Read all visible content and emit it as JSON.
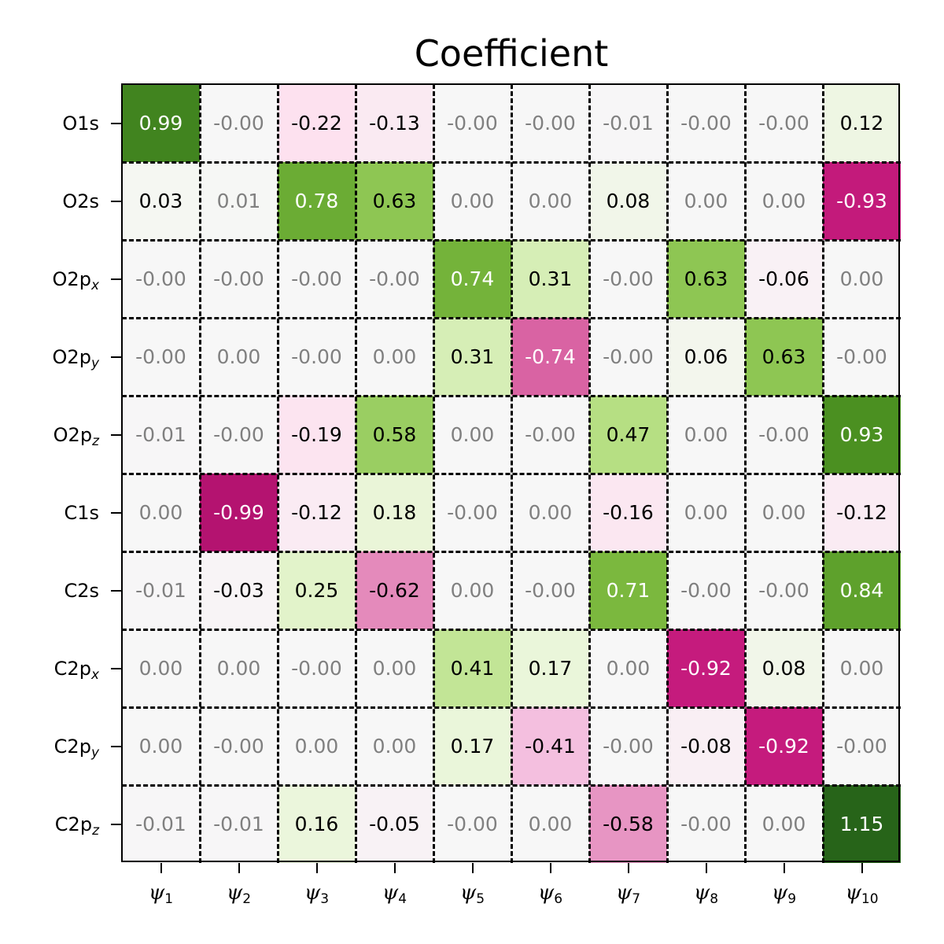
{
  "chart_data": {
    "type": "heatmap",
    "title": "Coefficient",
    "xlabel": "",
    "ylabel": "",
    "colormap": "PiYG",
    "vmin": -1.15,
    "vmax": 1.15,
    "grid": "dashed black lines between cells",
    "x_labels": [
      {
        "base": "ψ",
        "sub": "1"
      },
      {
        "base": "ψ",
        "sub": "2"
      },
      {
        "base": "ψ",
        "sub": "3"
      },
      {
        "base": "ψ",
        "sub": "4"
      },
      {
        "base": "ψ",
        "sub": "5"
      },
      {
        "base": "ψ",
        "sub": "6"
      },
      {
        "base": "ψ",
        "sub": "7"
      },
      {
        "base": "ψ",
        "sub": "8"
      },
      {
        "base": "ψ",
        "sub": "9"
      },
      {
        "base": "ψ",
        "sub": "10"
      }
    ],
    "y_labels": [
      {
        "base": "O1s",
        "sub": ""
      },
      {
        "base": "O2s",
        "sub": ""
      },
      {
        "base": "O2p",
        "sub": "x"
      },
      {
        "base": "O2p",
        "sub": "y"
      },
      {
        "base": "O2p",
        "sub": "z"
      },
      {
        "base": "C1s",
        "sub": ""
      },
      {
        "base": "C2s",
        "sub": ""
      },
      {
        "base": "C2p",
        "sub": "x"
      },
      {
        "base": "C2p",
        "sub": "y"
      },
      {
        "base": "C2p",
        "sub": "z"
      }
    ],
    "cell_labels": [
      [
        "0.99",
        "-0.00",
        "-0.22",
        "-0.13",
        "-0.00",
        "-0.00",
        "-0.01",
        "-0.00",
        "-0.00",
        "0.12"
      ],
      [
        "0.03",
        "0.01",
        "0.78",
        "0.63",
        "0.00",
        "0.00",
        "0.08",
        "0.00",
        "0.00",
        "-0.93"
      ],
      [
        "-0.00",
        "-0.00",
        "-0.00",
        "-0.00",
        "0.74",
        "0.31",
        "-0.00",
        "0.63",
        "-0.06",
        "0.00"
      ],
      [
        "-0.00",
        "0.00",
        "-0.00",
        "0.00",
        "0.31",
        "-0.74",
        "-0.00",
        "0.06",
        "0.63",
        "-0.00"
      ],
      [
        "-0.01",
        "-0.00",
        "-0.19",
        "0.58",
        "0.00",
        "-0.00",
        "0.47",
        "0.00",
        "-0.00",
        "0.93"
      ],
      [
        "0.00",
        "-0.99",
        "-0.12",
        "0.18",
        "-0.00",
        "0.00",
        "-0.16",
        "0.00",
        "0.00",
        "-0.12"
      ],
      [
        "-0.01",
        "-0.03",
        "0.25",
        "-0.62",
        "0.00",
        "-0.00",
        "0.71",
        "-0.00",
        "-0.00",
        "0.84"
      ],
      [
        "0.00",
        "0.00",
        "-0.00",
        "0.00",
        "0.41",
        "0.17",
        "0.00",
        "-0.92",
        "0.08",
        "0.00"
      ],
      [
        "0.00",
        "-0.00",
        "0.00",
        "0.00",
        "0.17",
        "-0.41",
        "-0.00",
        "-0.08",
        "-0.92",
        "-0.00"
      ],
      [
        "-0.01",
        "-0.01",
        "0.16",
        "-0.05",
        "-0.00",
        "0.00",
        "-0.58",
        "-0.00",
        "0.00",
        "1.15"
      ]
    ],
    "values": [
      [
        0.99,
        -0.0,
        -0.22,
        -0.13,
        -0.0,
        -0.0,
        -0.01,
        -0.0,
        -0.0,
        0.12
      ],
      [
        0.03,
        0.01,
        0.78,
        0.63,
        0.0,
        0.0,
        0.08,
        0.0,
        0.0,
        -0.93
      ],
      [
        -0.0,
        -0.0,
        -0.0,
        -0.0,
        0.74,
        0.31,
        -0.0,
        0.63,
        -0.06,
        0.0
      ],
      [
        -0.0,
        0.0,
        -0.0,
        0.0,
        0.31,
        -0.74,
        -0.0,
        0.06,
        0.63,
        -0.0
      ],
      [
        -0.01,
        -0.0,
        -0.19,
        0.58,
        0.0,
        -0.0,
        0.47,
        0.0,
        -0.0,
        0.93
      ],
      [
        0.0,
        -0.99,
        -0.12,
        0.18,
        -0.0,
        0.0,
        -0.16,
        0.0,
        0.0,
        -0.12
      ],
      [
        -0.01,
        -0.03,
        0.25,
        -0.62,
        0.0,
        -0.0,
        0.71,
        -0.0,
        -0.0,
        0.84
      ],
      [
        0.0,
        0.0,
        -0.0,
        0.0,
        0.41,
        0.17,
        0.0,
        -0.92,
        0.08,
        0.0
      ],
      [
        0.0,
        -0.0,
        0.0,
        0.0,
        0.17,
        -0.41,
        -0.0,
        -0.08,
        -0.92,
        -0.0
      ],
      [
        -0.01,
        -0.01,
        0.16,
        -0.05,
        -0.0,
        0.0,
        -0.58,
        -0.0,
        0.0,
        1.15
      ]
    ]
  },
  "colors": {
    "text_dark": "#000000",
    "text_light": "#ffffff",
    "text_near_zero": "#808080",
    "piyg_stops": [
      "#8e0152",
      "#c51b7d",
      "#de77ae",
      "#f1b6da",
      "#fde0ef",
      "#f7f7f7",
      "#e6f5d0",
      "#b8e186",
      "#7fbc41",
      "#4d9221",
      "#276419"
    ]
  }
}
